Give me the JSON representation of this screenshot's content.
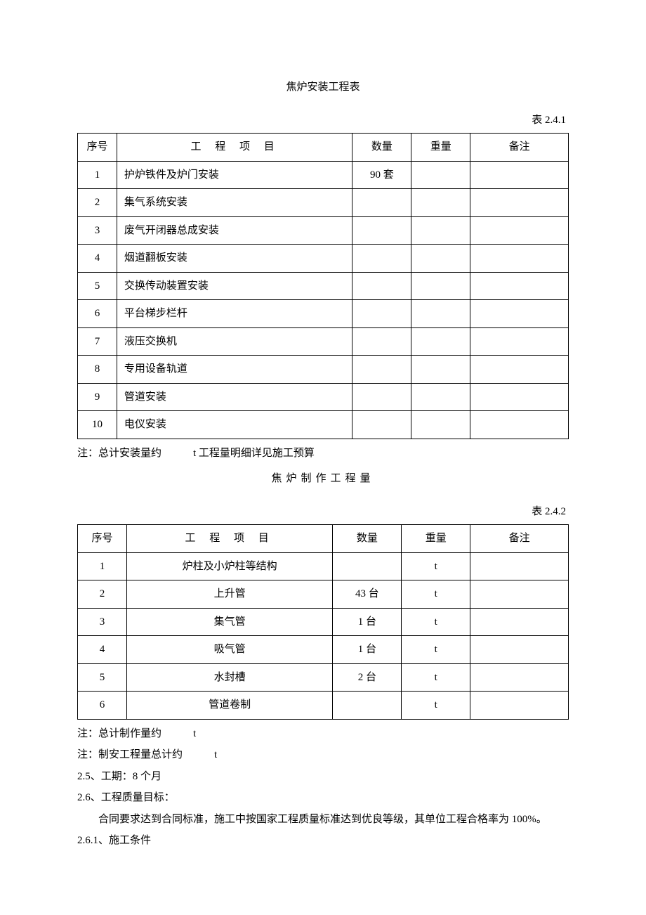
{
  "table1": {
    "title": "焦炉安装工程表",
    "label": "表 2.4.1",
    "columns": [
      "序号",
      "工 程 项 目",
      "数量",
      "重量",
      "备注"
    ],
    "rows": [
      [
        "1",
        "护炉铁件及炉门安装",
        "90 套",
        "",
        ""
      ],
      [
        "2",
        "集气系统安装",
        "",
        "",
        ""
      ],
      [
        "3",
        "废气开闭器总成安装",
        "",
        "",
        ""
      ],
      [
        "4",
        "烟道翻板安装",
        "",
        "",
        ""
      ],
      [
        "5",
        "交换传动装置安装",
        "",
        "",
        ""
      ],
      [
        "6",
        "平台梯步栏杆",
        "",
        "",
        ""
      ],
      [
        "7",
        "液压交换机",
        "",
        "",
        ""
      ],
      [
        "8",
        "专用设备轨道",
        "",
        "",
        ""
      ],
      [
        "9",
        "管道安装",
        "",
        "",
        ""
      ],
      [
        "10",
        "电仪安装",
        "",
        "",
        ""
      ]
    ],
    "footnote": "注：总计安装量约　　　t 工程量明细详见施工预算"
  },
  "table2": {
    "title": "焦炉制作工程量",
    "label": "表 2.4.2",
    "columns": [
      "序号",
      "工 程 项 目",
      "数量",
      "重量",
      "备注"
    ],
    "rows": [
      [
        "1",
        "炉柱及小炉柱等结构",
        "",
        "t",
        ""
      ],
      [
        "2",
        "上升管",
        "43 台",
        "t",
        ""
      ],
      [
        "3",
        "集气管",
        "1 台",
        "t",
        ""
      ],
      [
        "4",
        "吸气管",
        "1 台",
        "t",
        ""
      ],
      [
        "5",
        "水封槽",
        "2 台",
        "t",
        ""
      ],
      [
        "6",
        "管道卷制",
        "",
        "t",
        ""
      ]
    ],
    "footnote1": "注：总计制作量约　　　t",
    "footnote2": "注：制安工程量总计约　　　t"
  },
  "paragraphs": {
    "p1": "2.5、工期：8 个月",
    "p2": "2.6、工程质量目标：",
    "p3": "合同要求达到合同标准，施工中按国家工程质量标准达到优良等级，其单位工程合格率为 100%。",
    "p4": "2.6.1、施工条件"
  }
}
